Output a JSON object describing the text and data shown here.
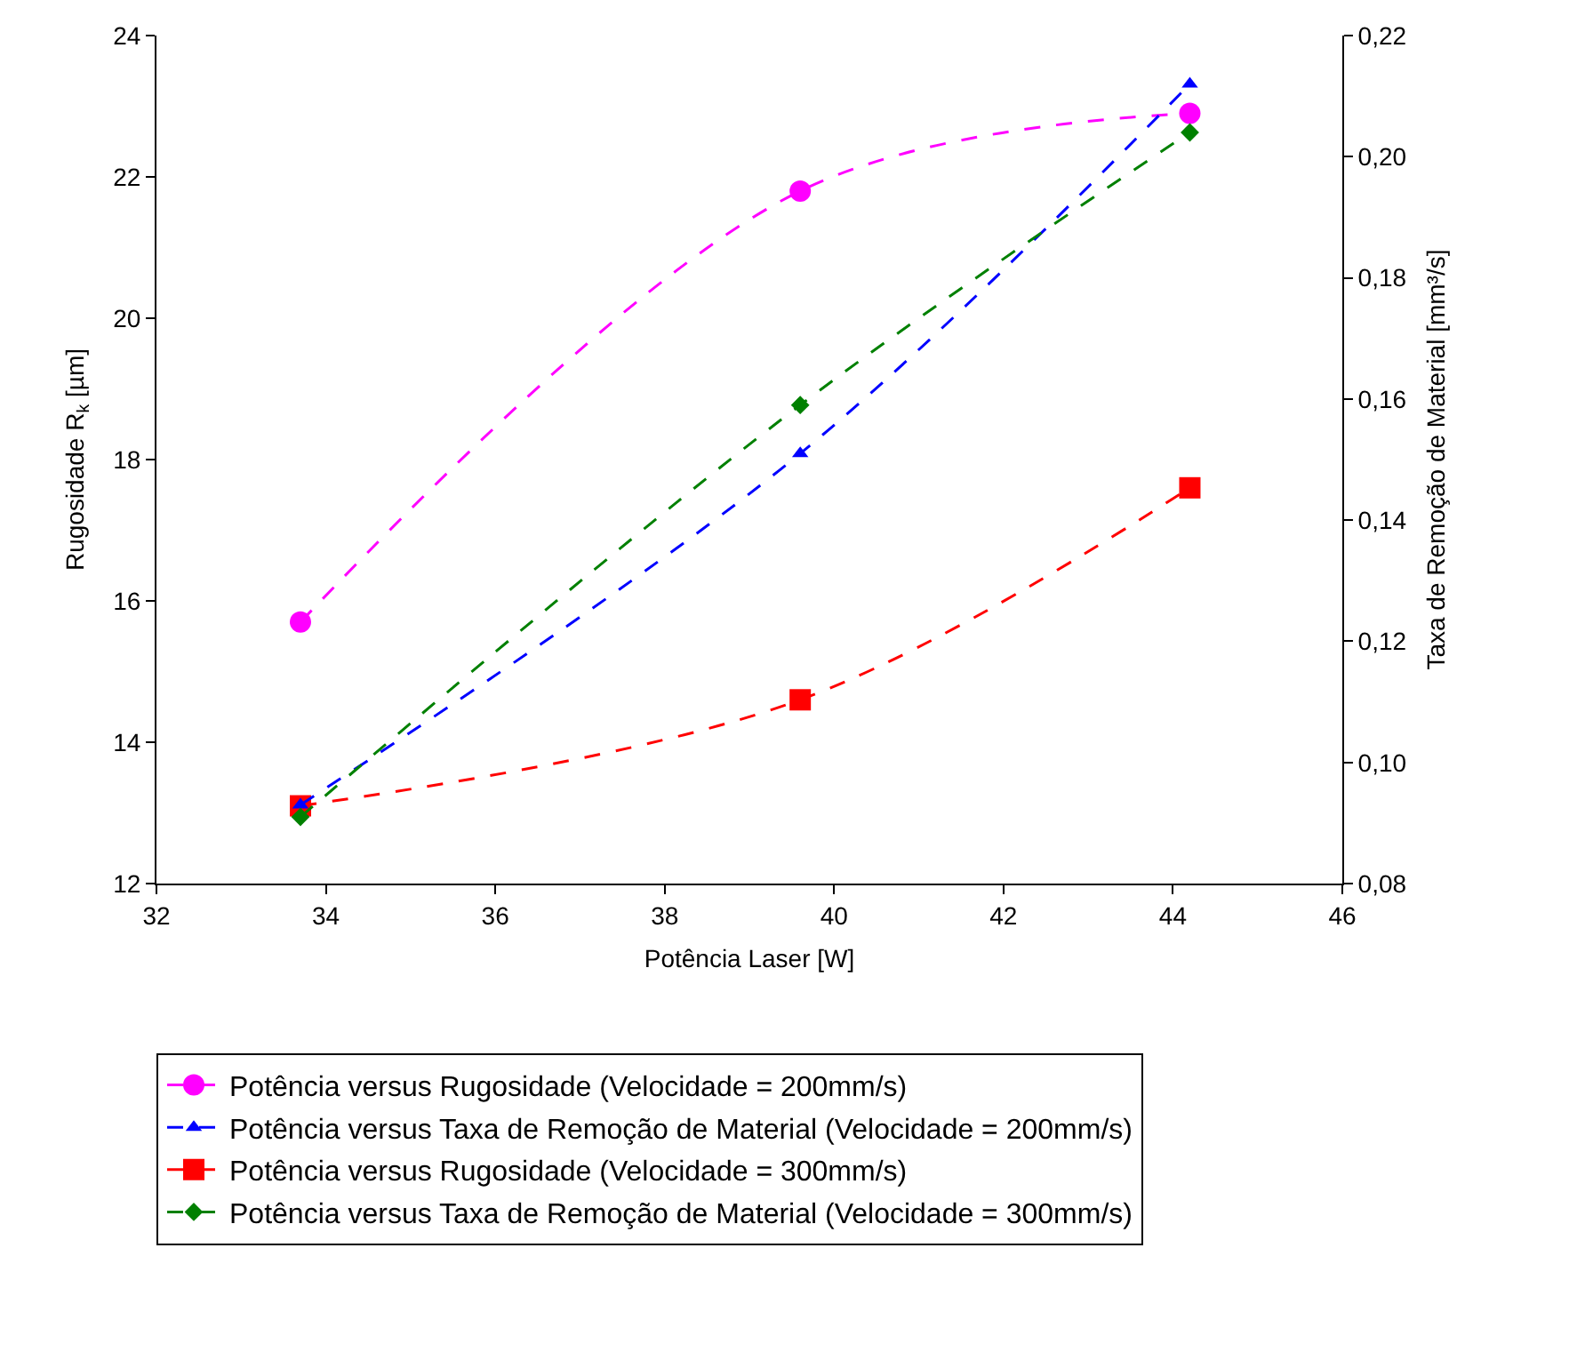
{
  "chart_data": {
    "type": "line",
    "xlabel": "Potência Laser [W]",
    "ylabel": "Rugosidade R$_{k}$ [µm]",
    "y2label": "Taxa de Remoção de Material [mm³/s]",
    "x": [
      33.7,
      39.6,
      44.2
    ],
    "series": [
      {
        "name": "Potência versus Rugosidade (Velocidade = 200mm/s)",
        "color": "#ff00ff",
        "marker": "circle",
        "values": [
          15.7,
          21.8,
          22.9
        ]
      },
      {
        "name": "Potência versus Taxa de Remoção de Material (Velocidade = 200mm/s)",
        "color": "#0000ff",
        "marker": "triangle",
        "axis": "y2",
        "values": [
          0.093,
          0.151,
          0.212
        ]
      },
      {
        "name": "Potência versus Rugosidade (Velocidade = 300mm/s)",
        "color": "#ff0000",
        "marker": "square",
        "values": [
          13.1,
          14.6,
          17.6
        ]
      },
      {
        "name": "Potência versus Taxa de Remoção de Material (Velocidade = 300mm/s)",
        "color": "#008000",
        "marker": "diamond",
        "axis": "y2",
        "values": [
          0.091,
          0.159,
          0.204
        ]
      }
    ],
    "xlim": [
      32,
      46
    ],
    "xticks": [
      32,
      34,
      36,
      38,
      40,
      42,
      44,
      46
    ],
    "ylim": [
      12,
      24
    ],
    "yticks": [
      12,
      14,
      16,
      18,
      20,
      22,
      24
    ],
    "y2lim": [
      0.08,
      0.22
    ],
    "y2ticks": [
      {
        "value": 0.08,
        "label": "0,08"
      },
      {
        "value": 0.1,
        "label": "0,10"
      },
      {
        "value": 0.12,
        "label": "0,12"
      },
      {
        "value": 0.14,
        "label": "0,14"
      },
      {
        "value": 0.16,
        "label": "0,16"
      },
      {
        "value": 0.18,
        "label": "0,18"
      },
      {
        "value": 0.2,
        "label": "0,20"
      },
      {
        "value": 0.22,
        "label": "0,22"
      }
    ],
    "grid": false,
    "legend": "bottom",
    "line_style": "dashed"
  }
}
